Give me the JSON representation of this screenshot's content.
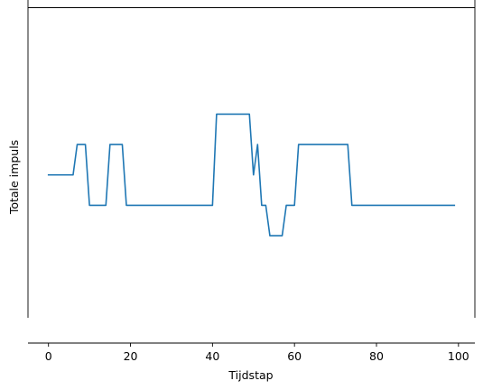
{
  "chart_data": {
    "type": "line",
    "title": "",
    "xlabel": "Tijdstap",
    "ylabel": "Totale impuls",
    "xlim": [
      -5,
      104
    ],
    "x_ticks": [
      0,
      20,
      40,
      60,
      80,
      100
    ],
    "x_tick_labels": [
      "0",
      "20",
      "40",
      "60",
      "80",
      "100"
    ],
    "ylim": [
      -5.5,
      5.5
    ],
    "grid": false,
    "series_color": "#1f77b4",
    "series": [
      {
        "x": [
          0,
          1,
          2,
          3,
          4,
          5,
          6,
          7,
          8,
          9,
          10,
          11,
          12,
          13,
          14,
          15,
          16,
          17,
          18,
          19,
          20,
          21,
          22,
          23,
          24,
          25,
          26,
          27,
          28,
          29,
          30,
          31,
          32,
          33,
          34,
          35,
          36,
          37,
          38,
          39,
          40,
          41,
          42,
          43,
          44,
          45,
          46,
          47,
          48,
          49,
          50,
          51,
          52,
          53,
          54,
          55,
          56,
          57,
          58,
          59,
          60,
          61,
          62,
          63,
          64,
          65,
          66,
          67,
          68,
          69,
          70,
          71,
          72,
          73,
          74,
          75,
          76,
          77,
          78,
          79,
          80,
          81,
          82,
          83,
          84,
          85,
          86,
          87,
          88,
          89,
          90,
          91,
          92,
          93,
          94,
          95,
          96,
          97,
          98,
          99
        ],
        "values": [
          0,
          0,
          0,
          0,
          0,
          0,
          0,
          1,
          1,
          1,
          -1,
          -1,
          -1,
          -1,
          -1,
          1,
          1,
          1,
          1,
          -1,
          -1,
          -1,
          -1,
          -1,
          -1,
          -1,
          -1,
          -1,
          -1,
          -1,
          -1,
          -1,
          -1,
          -1,
          -1,
          -1,
          -1,
          -1,
          -1,
          -1,
          -1,
          2,
          2,
          2,
          2,
          2,
          2,
          2,
          2,
          2,
          0,
          1,
          -1,
          -1,
          -2,
          -2,
          -2,
          -2,
          -1,
          -1,
          -1,
          1,
          1,
          1,
          1,
          1,
          1,
          1,
          1,
          1,
          1,
          1,
          1,
          1,
          -1,
          -1,
          -1,
          -1,
          -1,
          -1,
          -1,
          -1,
          -1,
          -1,
          -1,
          -1,
          -1,
          -1,
          -1,
          -1,
          -1,
          -1,
          -1,
          -1,
          -1,
          -1,
          -1,
          -1,
          -1,
          -1
        ]
      }
    ]
  }
}
